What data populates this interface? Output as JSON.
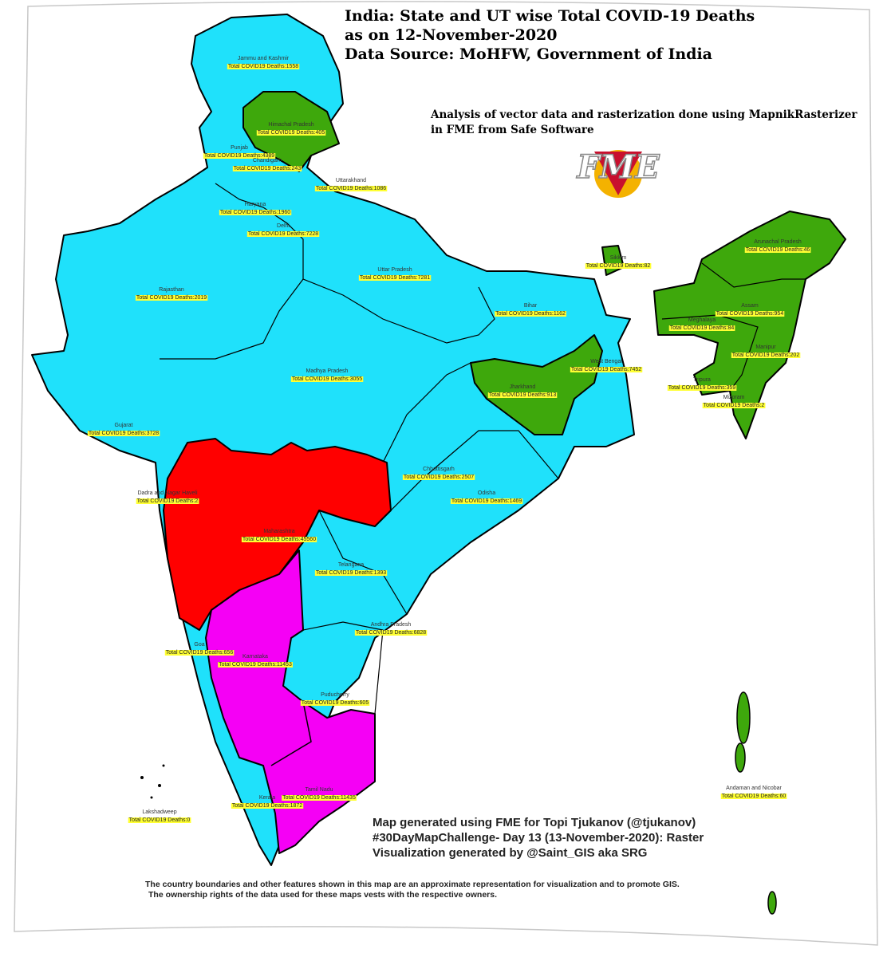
{
  "title": {
    "line1": "India: State and UT wise Total COVID-19 Deaths",
    "line2": "as on 12-November-2020",
    "line3": "Data Source: MoHFW, Government of India"
  },
  "analysis_note": {
    "line1": "Analysis of vector data and rasterization done using MapnikRasterizer",
    "line2": "in FME from Safe Software"
  },
  "logo": "FME",
  "regions": [
    {
      "name": "Jammu and Kashmir",
      "label": "Total COVID19 Deaths:1558"
    },
    {
      "name": "Himachal Pradesh",
      "label": "Total COVID19 Deaths:405"
    },
    {
      "name": "Punjab",
      "label": "Total COVID19 Deaths:4389"
    },
    {
      "name": "Chandigarh",
      "label": "Total COVID19 Deaths:243"
    },
    {
      "name": "Uttarakhand",
      "label": "Total COVID19 Deaths:1086"
    },
    {
      "name": "Haryana",
      "label": "Total COVID19 Deaths:1960"
    },
    {
      "name": "Delhi",
      "label": "Total COVID19 Deaths:7228"
    },
    {
      "name": "Rajasthan",
      "label": "Total COVID19 Deaths:2019"
    },
    {
      "name": "Uttar Pradesh",
      "label": "Total COVID19 Deaths:7281"
    },
    {
      "name": "Bihar",
      "label": "Total COVID19 Deaths:1162"
    },
    {
      "name": "Sikkim",
      "label": "Total COVID19 Deaths:82"
    },
    {
      "name": "Arunachal Pradesh",
      "label": "Total COVID19 Deaths:46"
    },
    {
      "name": "Assam",
      "label": "Total COVID19 Deaths:954"
    },
    {
      "name": "Meghalaya",
      "label": "Total COVID19 Deaths:84"
    },
    {
      "name": "Manipur",
      "label": "Total COVID19 Deaths:202"
    },
    {
      "name": "Tripura",
      "label": "Total COVID19 Deaths:359"
    },
    {
      "name": "Mizoram",
      "label": "Total COVID19 Deaths:2"
    },
    {
      "name": "West Bengal",
      "label": "Total COVID19 Deaths:7452"
    },
    {
      "name": "Jharkhand",
      "label": "Total COVID19 Deaths:913"
    },
    {
      "name": "Madhya Pradesh",
      "label": "Total COVID19 Deaths:3055"
    },
    {
      "name": "Gujarat",
      "label": "Total COVID19 Deaths:3728"
    },
    {
      "name": "Dadra and Nagar Haveli",
      "label": "Total COVID19 Deaths:2"
    },
    {
      "name": "Chhattisgarh",
      "label": "Total COVID19 Deaths:2507"
    },
    {
      "name": "Odisha",
      "label": "Total COVID19 Deaths:1469"
    },
    {
      "name": "Maharashtra",
      "label": "Total COVID19 Deaths:45560"
    },
    {
      "name": "Telangana",
      "label": "Total COVID19 Deaths:1393"
    },
    {
      "name": "Andhra Pradesh",
      "label": "Total COVID19 Deaths:6828"
    },
    {
      "name": "Goa",
      "label": "Total COVID19 Deaths:656"
    },
    {
      "name": "Karnataka",
      "label": "Total COVID19 Deaths:11453"
    },
    {
      "name": "Puducherry",
      "label": "Total COVID19 Deaths:605"
    },
    {
      "name": "Kerala",
      "label": "Total COVID19 Deaths:1872"
    },
    {
      "name": "Tamil Nadu",
      "label": "Total COVID19 Deaths:11435"
    },
    {
      "name": "Lakshadweep",
      "label": "Total COVID19 Deaths:0"
    },
    {
      "name": "Andaman and Nicobar",
      "label": "Total COVID19 Deaths:60"
    }
  ],
  "credits": {
    "line1": "Map generated using FME for Topi Tjukanov (@tjukanov)",
    "line2": "#30DayMapChallenge- Day 13 (13-November-2020): Raster",
    "line3": "Visualization generated by @Saint_GIS aka SRG"
  },
  "disclaimer": {
    "line1": "The country boundaries and other features shown in this map are an approximate representation for visualization and to promote GIS.",
    "line2": "The ownership rights of the data used for these maps vests with the respective owners."
  }
}
